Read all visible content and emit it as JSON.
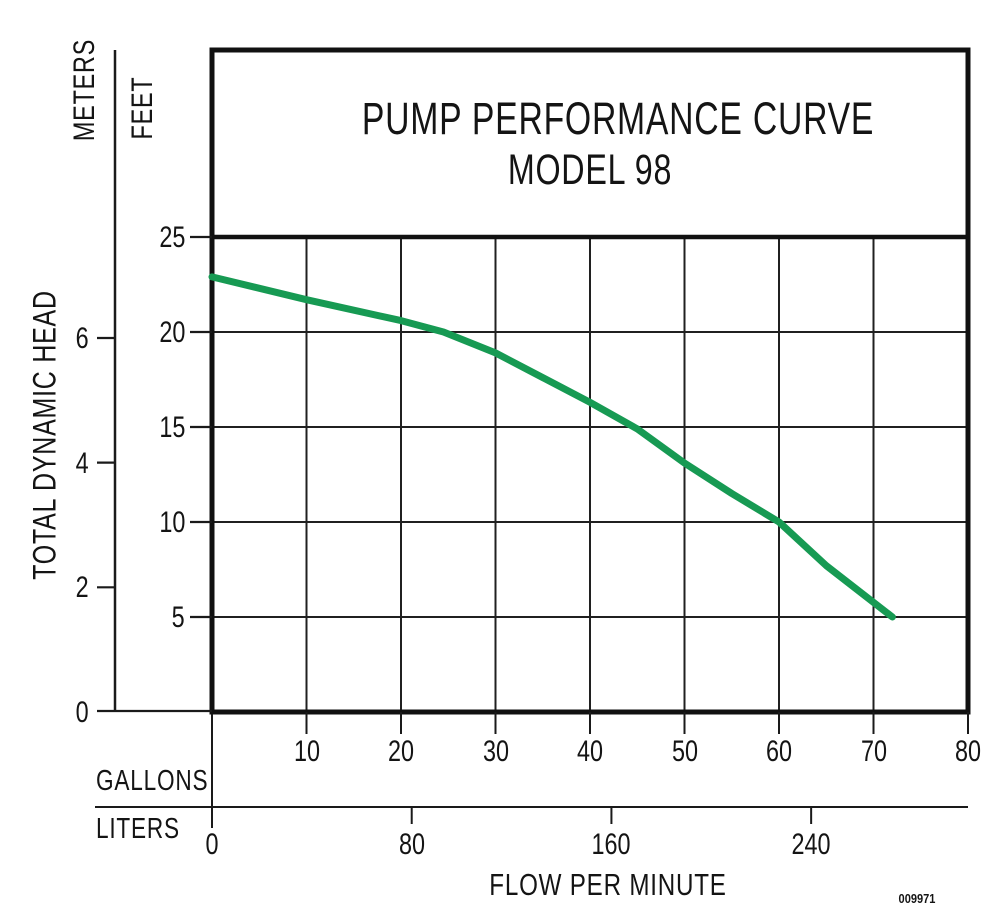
{
  "chart_data": {
    "type": "line",
    "title": "PUMP PERFORMANCE CURVE",
    "subtitle": "MODEL 98",
    "grid": "on",
    "x_axis": {
      "label": "FLOW PER MINUTE",
      "scales": [
        {
          "name": "GALLONS",
          "min": 0,
          "max": 80,
          "ticks": [
            10,
            20,
            30,
            40,
            50,
            60,
            70,
            80
          ]
        },
        {
          "name": "LITERS",
          "ticks": [
            0,
            80,
            160,
            240
          ]
        }
      ]
    },
    "y_axis": {
      "label": "TOTAL DYNAMIC HEAD",
      "scales": [
        {
          "name": "FEET",
          "min": 0,
          "max": 25,
          "ticks": [
            25,
            20,
            15,
            10,
            5
          ]
        },
        {
          "name": "METERS",
          "ticks": [
            6,
            4,
            2,
            0
          ],
          "zero_label": "0"
        }
      ]
    },
    "series": [
      {
        "name": "Model 98 performance curve",
        "color": "#179a53",
        "points_gpm_ft": [
          [
            0,
            22.9
          ],
          [
            10,
            21.7
          ],
          [
            20,
            20.6
          ],
          [
            24.5,
            20.0
          ],
          [
            30,
            18.9
          ],
          [
            35,
            17.6
          ],
          [
            40,
            16.3
          ],
          [
            45,
            14.9
          ],
          [
            50,
            13.1
          ],
          [
            55,
            11.5
          ],
          [
            60,
            10.0
          ],
          [
            65,
            7.7
          ],
          [
            72,
            5.0
          ]
        ]
      }
    ],
    "footnote": "009971"
  }
}
